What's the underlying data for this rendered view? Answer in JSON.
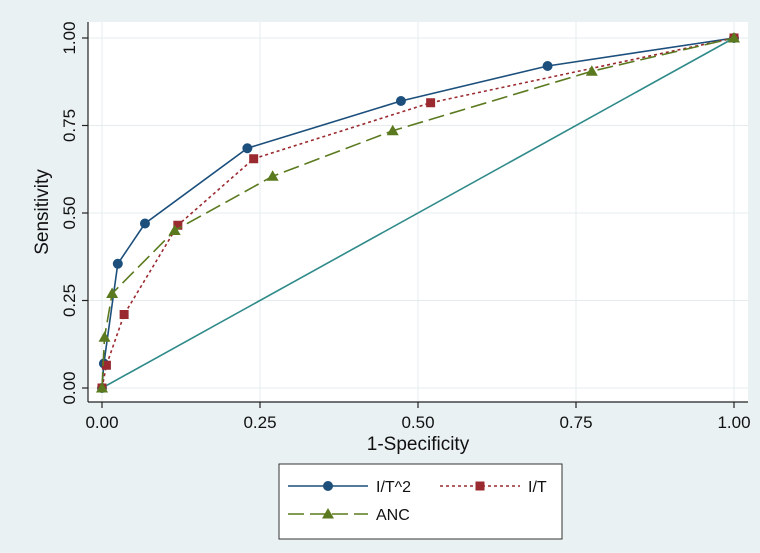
{
  "chart_data": {
    "type": "line",
    "xlabel": "1-Specificity",
    "ylabel": "Sensitivity",
    "xlim": [
      0,
      1
    ],
    "ylim": [
      0,
      1
    ],
    "x_ticks": [
      "0.00",
      "0.25",
      "0.50",
      "0.75",
      "1.00"
    ],
    "y_ticks": [
      "0.00",
      "0.25",
      "0.50",
      "0.75",
      "1.00"
    ],
    "grid": true,
    "legend_position": "bottom",
    "reference_line": {
      "x": [
        0,
        1
      ],
      "y": [
        0,
        1
      ],
      "color": "#2f8a8a"
    },
    "series": [
      {
        "name": "I/T^2",
        "color": "#1c4f7c",
        "marker": "circle",
        "dash": "solid",
        "x": [
          0.0,
          0.003,
          0.025,
          0.068,
          0.23,
          0.473,
          0.705,
          1.0
        ],
        "y": [
          0.0,
          0.07,
          0.355,
          0.47,
          0.685,
          0.82,
          0.92,
          1.0
        ]
      },
      {
        "name": "I/T",
        "color": "#9a2a2f",
        "marker": "square",
        "dash": "dotted",
        "x": [
          0.0,
          0.007,
          0.035,
          0.12,
          0.24,
          0.52,
          1.0
        ],
        "y": [
          0.0,
          0.065,
          0.21,
          0.465,
          0.655,
          0.815,
          1.0
        ]
      },
      {
        "name": "ANC",
        "color": "#5b7a1f",
        "marker": "triangle",
        "dash": "longdash",
        "x": [
          0.0,
          0.004,
          0.016,
          0.115,
          0.27,
          0.46,
          0.775,
          1.0
        ],
        "y": [
          0.0,
          0.145,
          0.27,
          0.45,
          0.605,
          0.735,
          0.905,
          1.0
        ]
      }
    ]
  }
}
